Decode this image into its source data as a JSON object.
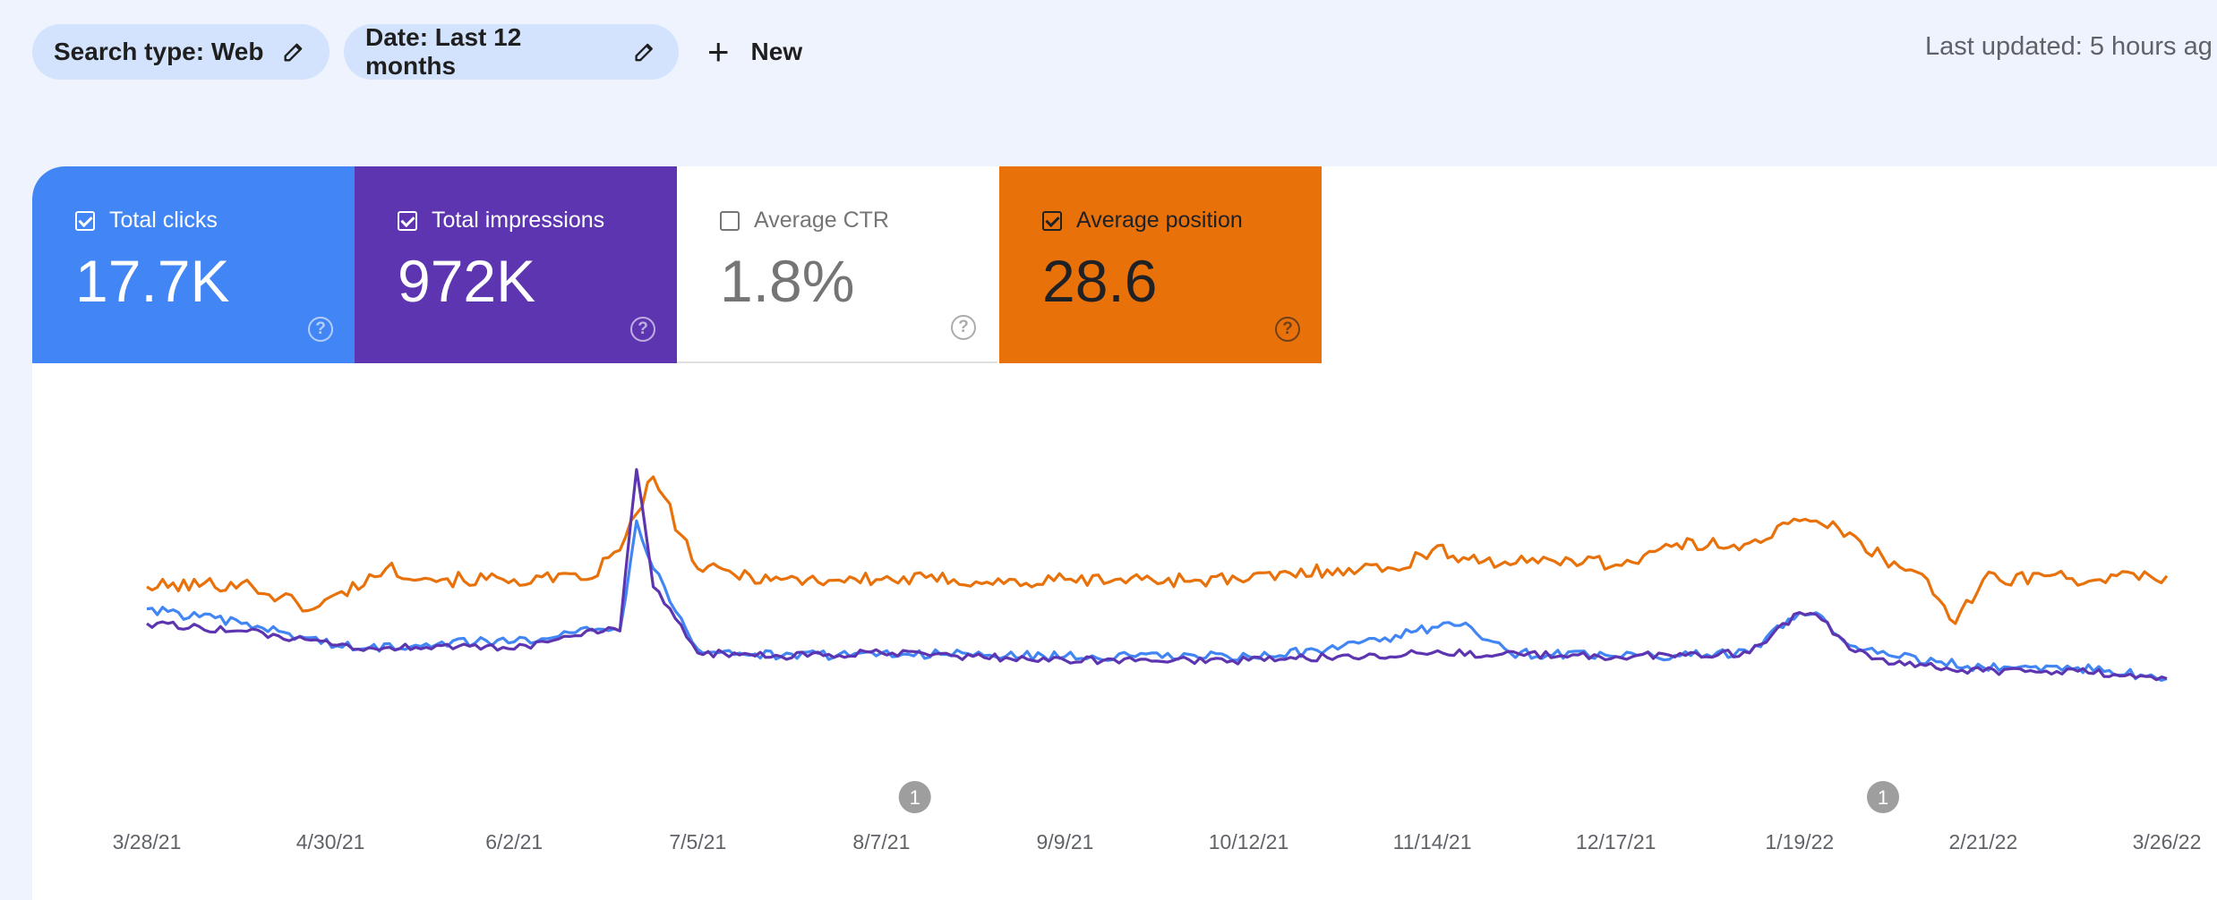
{
  "filters": {
    "search_type": "Search type: Web",
    "date": "Date: Last 12 months",
    "new_label": "New"
  },
  "last_updated": "Last updated: 5 hours ag",
  "metrics": {
    "clicks": {
      "label": "Total clicks",
      "value": "17.7K",
      "checked": true
    },
    "impressions": {
      "label": "Total impressions",
      "value": "972K",
      "checked": true
    },
    "ctr": {
      "label": "Average CTR",
      "value": "1.8%",
      "checked": false
    },
    "position": {
      "label": "Average position",
      "value": "28.6",
      "checked": true
    }
  },
  "colors": {
    "clicks": "#4285f4",
    "impressions": "#5e35b1",
    "position": "#e8710a",
    "annotation": "#9e9e9e"
  },
  "chart_data": {
    "type": "line",
    "title": "",
    "xlabel": "",
    "ylabel": "",
    "axis": {
      "start_date": "3/28/21",
      "end_date": "3/26/22",
      "tick_labels": [
        "3/28/21",
        "4/30/21",
        "6/2/21",
        "7/5/21",
        "8/7/21",
        "9/9/21",
        "10/12/21",
        "11/14/21",
        "12/17/21",
        "1/19/22",
        "2/21/22",
        "3/26/22"
      ],
      "y_axis_visible": false,
      "grid": false
    },
    "annotations": [
      {
        "date": "8/13/21",
        "label": "1"
      },
      {
        "date": "2/3/22",
        "label": "1"
      }
    ],
    "series": [
      {
        "key": "position",
        "x": [
          "3/28/21",
          "4/14/21",
          "4/27/21",
          "5/10/21",
          "5/20/21",
          "6/2/21",
          "6/15/21",
          "6/21/21",
          "6/27/21",
          "7/5/21",
          "7/20/21",
          "8/7/21",
          "8/20/21",
          "9/2/21",
          "9/9/21",
          "9/18/21",
          "10/12/21",
          "10/28/21",
          "11/7/21",
          "11/14/21",
          "11/28/21",
          "12/8/21",
          "12/17/21",
          "12/27/21",
          "1/10/22",
          "1/19/22",
          "1/26/22",
          "2/3/22",
          "2/11/22",
          "2/16/22",
          "2/21/22",
          "3/4/22",
          "3/14/22",
          "3/26/22"
        ],
        "y": [
          50,
          51,
          44,
          55,
          52,
          52,
          52,
          60,
          80,
          55,
          52,
          52,
          52,
          51,
          52,
          52,
          52,
          55,
          55,
          60,
          56,
          58,
          56,
          61,
          62,
          68,
          66,
          58,
          52,
          40,
          52,
          53,
          52,
          53
        ]
      },
      {
        "key": "clicks",
        "x": [
          "3/28/21",
          "4/14/21",
          "5/5/21",
          "5/20/21",
          "6/2/21",
          "6/15/21",
          "6/21/21",
          "6/24/21",
          "6/27/21",
          "7/5/21",
          "7/20/21",
          "8/7/21",
          "9/9/21",
          "10/12/21",
          "10/28/21",
          "11/14/21",
          "11/21/21",
          "11/28/21",
          "12/17/21",
          "1/10/22",
          "1/19/22",
          "1/23/22",
          "1/28/22",
          "2/5/22",
          "2/21/22",
          "3/10/22",
          "3/26/22"
        ],
        "y": [
          44,
          40,
          33,
          35,
          35,
          39,
          38,
          68,
          55,
          33,
          31,
          32,
          31,
          31,
          33,
          39,
          39,
          32,
          31,
          32,
          43,
          42,
          34,
          31,
          28,
          28,
          25
        ]
      },
      {
        "key": "impressions",
        "x": [
          "3/28/21",
          "4/14/21",
          "5/5/21",
          "5/20/21",
          "6/2/21",
          "6/15/21",
          "6/21/21",
          "6/24/21",
          "6/27/21",
          "7/5/21",
          "7/20/21",
          "8/7/21",
          "9/9/21",
          "10/12/21",
          "10/28/21",
          "11/14/21",
          "12/17/21",
          "1/10/22",
          "1/19/22",
          "1/23/22",
          "1/28/22",
          "2/5/22",
          "2/21/22",
          "3/10/22",
          "3/26/22"
        ],
        "y": [
          40,
          38,
          33,
          34,
          33,
          38,
          38,
          82,
          50,
          32,
          31,
          32,
          30,
          30,
          31,
          32,
          31,
          32,
          43,
          41,
          33,
          29,
          27,
          27,
          25
        ]
      }
    ]
  }
}
